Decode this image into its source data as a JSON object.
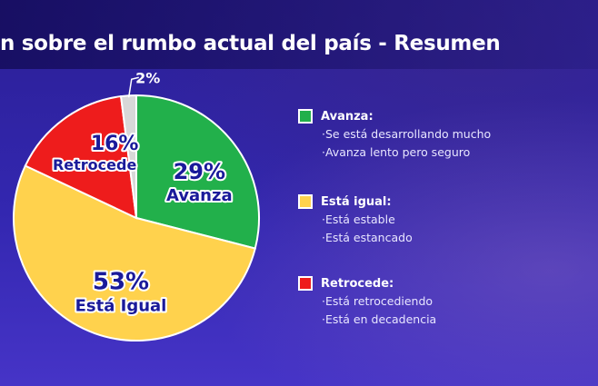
{
  "title": "n sobre el rumbo actual del país - Resumen",
  "colors": {
    "green": "#22b04b",
    "yellow": "#ffd24d",
    "red": "#ee1c1c",
    "gray": "#d8d8d8",
    "label_blue": "#1a1a9a"
  },
  "chart_data": {
    "type": "pie",
    "slices": [
      {
        "label": "Avanza",
        "value": 29,
        "pct_text": "29%",
        "color": "#22b04b"
      },
      {
        "label": "Está Igual",
        "value": 53,
        "pct_text": "53%",
        "color": "#ffd24d"
      },
      {
        "label": "Retrocede",
        "value": 16,
        "pct_text": "16%",
        "color": "#ee1c1c"
      },
      {
        "label": "",
        "value": 2,
        "pct_text": "2%",
        "color": "#d8d8d8"
      }
    ],
    "legend": [
      {
        "title": "Avanza:",
        "color": "#22b04b",
        "items": [
          "·Se está desarrollando mucho",
          "·Avanza lento pero seguro"
        ]
      },
      {
        "title": "Está igual:",
        "color": "#ffd24d",
        "items": [
          "·Está estable",
          "·Está estancado"
        ]
      },
      {
        "title": "Retrocede:",
        "color": "#ee1c1c",
        "items": [
          "·Está retrocediendo",
          "·Está en decadencia"
        ]
      }
    ],
    "legend_position": "right"
  }
}
